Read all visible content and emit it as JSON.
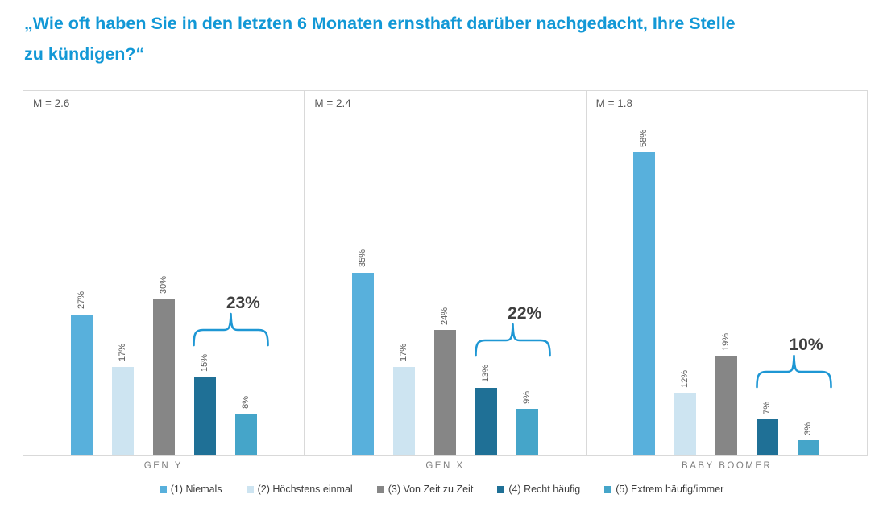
{
  "header": {
    "title_line1": "„Wie oft haben Sie in den letzten 6 Monaten ernsthaft darüber nachgedacht, Ihre Stelle",
    "title_line2": "zu kündigen?“"
  },
  "colors": {
    "title": "#1298D6",
    "brace": "#1E97D4",
    "value_label": "#595959",
    "mean_label": "#595959",
    "category_label": "#7F7F7F",
    "legend_text": "#3F3F3F",
    "panel_border": "#D9D9D9"
  },
  "chart_data": {
    "type": "bar",
    "title": "„Wie oft haben Sie in den letzten 6 Monaten ernsthaft darüber nachgedacht, Ihre Stelle zu kündigen?“",
    "unit": "percent",
    "ylim": [
      0,
      70
    ],
    "grid": false,
    "legend_position": "bottom",
    "series_labels": [
      "(1) Niemals",
      "(2) Höchstens einmal",
      "(3) Von Zeit zu Zeit",
      "(4) Recht häufig",
      "(5) Extrem häufig/immer"
    ],
    "series_colors": [
      "#58B0DC",
      "#CDE4F1",
      "#868686",
      "#1F7096",
      "#45A5C9"
    ],
    "groups": [
      {
        "category": "GEN Y",
        "mean_label": "M = 2.6",
        "mean": 2.6,
        "values": [
          27,
          17,
          30,
          15,
          8
        ],
        "value_labels": [
          "27%",
          "17%",
          "30%",
          "15%",
          "8%"
        ],
        "brace_total_label": "23%"
      },
      {
        "category": "GEN X",
        "mean_label": "M = 2.4",
        "mean": 2.4,
        "values": [
          35,
          17,
          24,
          13,
          9
        ],
        "value_labels": [
          "35%",
          "17%",
          "24%",
          "13%",
          "9%"
        ],
        "brace_total_label": "22%"
      },
      {
        "category": "BABY BOOMER",
        "mean_label": "M = 1.8",
        "mean": 1.8,
        "values": [
          58,
          12,
          19,
          7,
          3
        ],
        "value_labels": [
          "58%",
          "12%",
          "19%",
          "7%",
          "3%"
        ],
        "brace_total_label": "10%"
      }
    ],
    "annotations": [
      {
        "group": "GEN Y",
        "label": "23%",
        "spans_series": [
          4,
          5
        ]
      },
      {
        "group": "GEN X",
        "label": "22%",
        "spans_series": [
          4,
          5
        ]
      },
      {
        "group": "BABY BOOMER",
        "label": "10%",
        "spans_series": [
          4,
          5
        ]
      }
    ]
  }
}
